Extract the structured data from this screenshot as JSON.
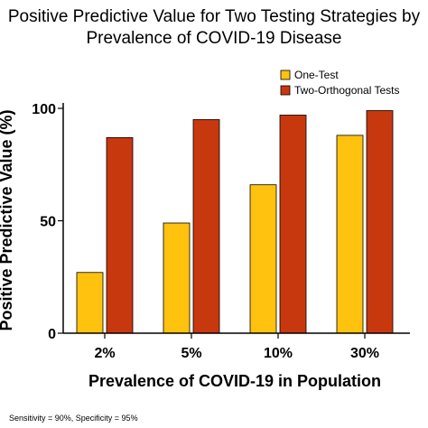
{
  "chart_data": {
    "type": "bar",
    "title_lines": [
      "Positive Predictive Value for Two Testing Strategies by",
      "Prevalence of COVID-19 Disease"
    ],
    "xlabel": "Prevalence of COVID-19 in Population",
    "ylabel": "Positive Predictive Value (%)",
    "categories": [
      "2%",
      "5%",
      "10%",
      "30%"
    ],
    "series": [
      {
        "name": "One-Test",
        "color": "#FFC20E",
        "values": [
          27,
          49,
          66,
          88
        ]
      },
      {
        "name": "Two-Orthogonal Tests",
        "color": "#C8380E",
        "values": [
          87,
          95,
          97,
          99
        ]
      }
    ],
    "ylim": [
      0,
      100
    ],
    "yticks": [
      0,
      50,
      100
    ],
    "grid": false,
    "legend": "top-right",
    "footnote": "Sensitivity = 90%, Specificity = 95%"
  }
}
